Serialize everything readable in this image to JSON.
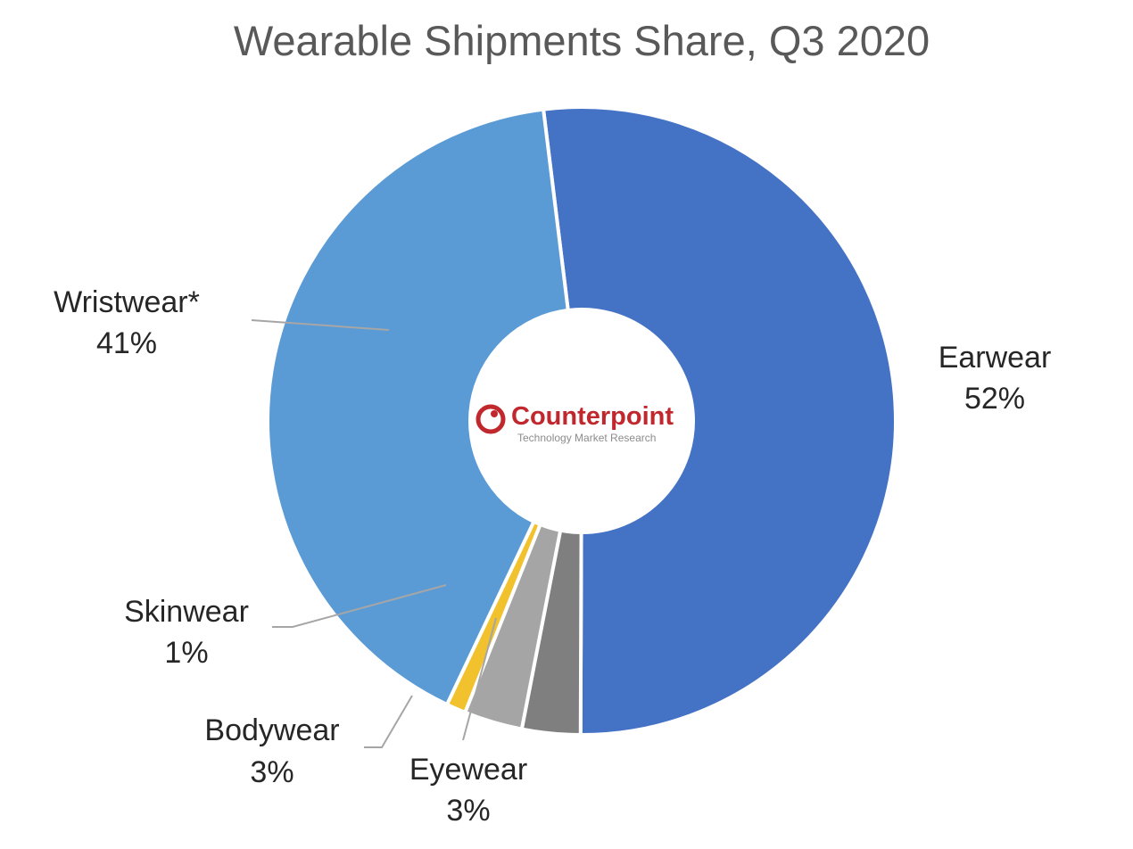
{
  "chart_data": {
    "type": "pie",
    "title": "Wearable Shipments Share, Q3 2020",
    "donut": true,
    "slices": [
      {
        "label": "Earwear",
        "value": "52%",
        "share": 52,
        "color": "#4472c4"
      },
      {
        "label": "Eyewear",
        "value": "3%",
        "share": 3,
        "color": "#7f7f7f"
      },
      {
        "label": "Bodywear",
        "value": "3%",
        "share": 3,
        "color": "#a5a5a5"
      },
      {
        "label": "Skinwear",
        "value": "1%",
        "share": 1,
        "color": "#f2c12e"
      },
      {
        "label": "Wristwear*",
        "value": "41%",
        "share": 41,
        "color": "#5b9bd5"
      }
    ]
  },
  "logo": {
    "name": "Counterpoint",
    "tagline": "Technology Market Research",
    "color": "#c0282d"
  }
}
